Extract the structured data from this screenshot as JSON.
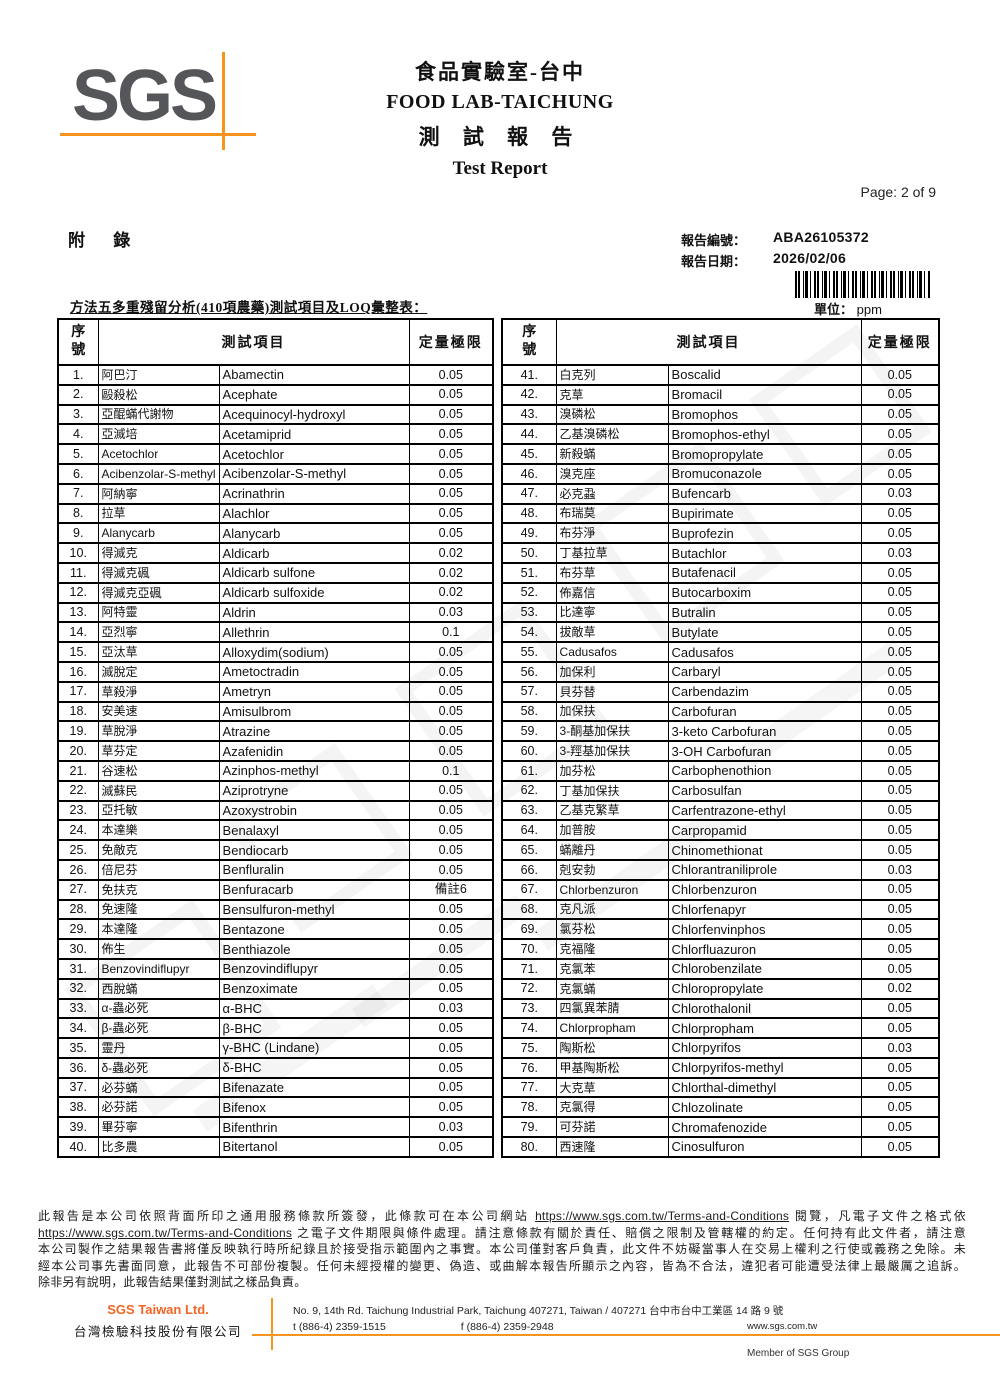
{
  "header": {
    "logo_text": "SGS",
    "lab_title_zh": "食品實驗室-台中",
    "lab_title_en": "FOOD LAB-TAICHUNG",
    "report_title_zh": "測 試 報 告",
    "report_title_en": "Test Report",
    "page_label": "Page: 2 of 9"
  },
  "meta": {
    "appendix_label": "附 錄",
    "report_no_label": "報告編號：",
    "report_no": "ABA26105372",
    "report_date_label": "報告日期：",
    "report_date": "2026/02/06",
    "unit_label": "單位：",
    "unit_value": "ppm"
  },
  "table": {
    "title": "方法五多重殘留分析(410項農藥)測試項目及LOQ彙整表：",
    "headers": {
      "no": "序號",
      "item": "測試項目",
      "loq": "定量極限"
    },
    "rows_left": [
      {
        "no": "1.",
        "zh": "阿巴汀",
        "en": "Abamectin",
        "loq": "0.05"
      },
      {
        "no": "2.",
        "zh": "毆殺松",
        "en": "Acephate",
        "loq": "0.05"
      },
      {
        "no": "3.",
        "zh": "亞醌蟎代謝物",
        "en": "Acequinocyl-hydroxyl",
        "loq": "0.05"
      },
      {
        "no": "4.",
        "zh": "亞滅培",
        "en": "Acetamiprid",
        "loq": "0.05"
      },
      {
        "no": "5.",
        "zh": "Acetochlor",
        "en": "Acetochlor",
        "loq": "0.05"
      },
      {
        "no": "6.",
        "zh": "Acibenzolar-S-methyl",
        "en": "Acibenzolar-S-methyl",
        "loq": "0.05"
      },
      {
        "no": "7.",
        "zh": "阿納寧",
        "en": "Acrinathrin",
        "loq": "0.05"
      },
      {
        "no": "8.",
        "zh": "拉草",
        "en": "Alachlor",
        "loq": "0.05"
      },
      {
        "no": "9.",
        "zh": "Alanycarb",
        "en": "Alanycarb",
        "loq": "0.05"
      },
      {
        "no": "10.",
        "zh": "得滅克",
        "en": "Aldicarb",
        "loq": "0.02"
      },
      {
        "no": "11.",
        "zh": "得滅克碸",
        "en": "Aldicarb sulfone",
        "loq": "0.02"
      },
      {
        "no": "12.",
        "zh": "得滅克亞碸",
        "en": "Aldicarb sulfoxide",
        "loq": "0.02"
      },
      {
        "no": "13.",
        "zh": "阿特靈",
        "en": "Aldrin",
        "loq": "0.03"
      },
      {
        "no": "14.",
        "zh": "亞烈寧",
        "en": "Allethrin",
        "loq": "0.1"
      },
      {
        "no": "15.",
        "zh": "亞汰草",
        "en": "Alloxydim(sodium)",
        "loq": "0.05"
      },
      {
        "no": "16.",
        "zh": "滅脫定",
        "en": "Ametoctradin",
        "loq": "0.05"
      },
      {
        "no": "17.",
        "zh": "草殺淨",
        "en": "Ametryn",
        "loq": "0.05"
      },
      {
        "no": "18.",
        "zh": "安美速",
        "en": "Amisulbrom",
        "loq": "0.05"
      },
      {
        "no": "19.",
        "zh": "草脫淨",
        "en": "Atrazine",
        "loq": "0.05"
      },
      {
        "no": "20.",
        "zh": "草芬定",
        "en": "Azafenidin",
        "loq": "0.05"
      },
      {
        "no": "21.",
        "zh": "谷速松",
        "en": "Azinphos-methyl",
        "loq": "0.1"
      },
      {
        "no": "22.",
        "zh": "滅蘇民",
        "en": "Aziprotryne",
        "loq": "0.05"
      },
      {
        "no": "23.",
        "zh": "亞托敏",
        "en": "Azoxystrobin",
        "loq": "0.05"
      },
      {
        "no": "24.",
        "zh": "本達樂",
        "en": "Benalaxyl",
        "loq": "0.05"
      },
      {
        "no": "25.",
        "zh": "免敵克",
        "en": "Bendiocarb",
        "loq": "0.05"
      },
      {
        "no": "26.",
        "zh": "倍尼芬",
        "en": "Benfluralin",
        "loq": "0.05"
      },
      {
        "no": "27.",
        "zh": "免扶克",
        "en": "Benfuracarb",
        "loq": "備註6"
      },
      {
        "no": "28.",
        "zh": "免速隆",
        "en": "Bensulfuron-methyl",
        "loq": "0.05"
      },
      {
        "no": "29.",
        "zh": "本達隆",
        "en": "Bentazone",
        "loq": "0.05"
      },
      {
        "no": "30.",
        "zh": "佈生",
        "en": "Benthiazole",
        "loq": "0.05"
      },
      {
        "no": "31.",
        "zh": "Benzovindiflupyr",
        "en": "Benzovindiflupyr",
        "loq": "0.05"
      },
      {
        "no": "32.",
        "zh": "西脫蟎",
        "en": "Benzoximate",
        "loq": "0.05"
      },
      {
        "no": "33.",
        "zh": "α-蟲必死",
        "en": "α-BHC",
        "loq": "0.03"
      },
      {
        "no": "34.",
        "zh": "β-蟲必死",
        "en": "β-BHC",
        "loq": "0.05"
      },
      {
        "no": "35.",
        "zh": "靈丹",
        "en": "γ-BHC (Lindane)",
        "loq": "0.05"
      },
      {
        "no": "36.",
        "zh": "δ-蟲必死",
        "en": "δ-BHC",
        "loq": "0.05"
      },
      {
        "no": "37.",
        "zh": "必芬蟎",
        "en": "Bifenazate",
        "loq": "0.05"
      },
      {
        "no": "38.",
        "zh": "必芬諾",
        "en": "Bifenox",
        "loq": "0.05"
      },
      {
        "no": "39.",
        "zh": "畢芬寧",
        "en": "Bifenthrin",
        "loq": "0.03"
      },
      {
        "no": "40.",
        "zh": "比多農",
        "en": "Bitertanol",
        "loq": "0.05"
      }
    ],
    "rows_right": [
      {
        "no": "41.",
        "zh": "白克列",
        "en": "Boscalid",
        "loq": "0.05"
      },
      {
        "no": "42.",
        "zh": "克草",
        "en": "Bromacil",
        "loq": "0.05"
      },
      {
        "no": "43.",
        "zh": "溴磷松",
        "en": "Bromophos",
        "loq": "0.05"
      },
      {
        "no": "44.",
        "zh": "乙基溴磷松",
        "en": "Bromophos-ethyl",
        "loq": "0.05"
      },
      {
        "no": "45.",
        "zh": "新殺蟎",
        "en": "Bromopropylate",
        "loq": "0.05"
      },
      {
        "no": "46.",
        "zh": "溴克座",
        "en": "Bromuconazole",
        "loq": "0.05"
      },
      {
        "no": "47.",
        "zh": "必克蝨",
        "en": "Bufencarb",
        "loq": "0.03"
      },
      {
        "no": "48.",
        "zh": "布瑞莫",
        "en": "Bupirimate",
        "loq": "0.05"
      },
      {
        "no": "49.",
        "zh": "布芬淨",
        "en": "Buprofezin",
        "loq": "0.05"
      },
      {
        "no": "50.",
        "zh": "丁基拉草",
        "en": "Butachlor",
        "loq": "0.03"
      },
      {
        "no": "51.",
        "zh": "布芬草",
        "en": "Butafenacil",
        "loq": "0.05"
      },
      {
        "no": "52.",
        "zh": "佈嘉信",
        "en": "Butocarboxim",
        "loq": "0.05"
      },
      {
        "no": "53.",
        "zh": "比達寧",
        "en": "Butralin",
        "loq": "0.05"
      },
      {
        "no": "54.",
        "zh": "拔敵草",
        "en": "Butylate",
        "loq": "0.05"
      },
      {
        "no": "55.",
        "zh": "Cadusafos",
        "en": "Cadusafos",
        "loq": "0.05"
      },
      {
        "no": "56.",
        "zh": "加保利",
        "en": "Carbaryl",
        "loq": "0.05"
      },
      {
        "no": "57.",
        "zh": "貝芬替",
        "en": "Carbendazim",
        "loq": "0.05"
      },
      {
        "no": "58.",
        "zh": "加保扶",
        "en": "Carbofuran",
        "loq": "0.05"
      },
      {
        "no": "59.",
        "zh": "3-酮基加保扶",
        "en": "3-keto Carbofuran",
        "loq": "0.05"
      },
      {
        "no": "60.",
        "zh": "3-羥基加保扶",
        "en": "3-OH Carbofuran",
        "loq": "0.05"
      },
      {
        "no": "61.",
        "zh": "加芬松",
        "en": "Carbophenothion",
        "loq": "0.05"
      },
      {
        "no": "62.",
        "zh": "丁基加保扶",
        "en": "Carbosulfan",
        "loq": "0.05"
      },
      {
        "no": "63.",
        "zh": "乙基克繁草",
        "en": "Carfentrazone-ethyl",
        "loq": "0.05"
      },
      {
        "no": "64.",
        "zh": "加普胺",
        "en": "Carpropamid",
        "loq": "0.05"
      },
      {
        "no": "65.",
        "zh": "蟎離丹",
        "en": "Chinomethionat",
        "loq": "0.05"
      },
      {
        "no": "66.",
        "zh": "剋安勃",
        "en": "Chlorantraniliprole",
        "loq": "0.03"
      },
      {
        "no": "67.",
        "zh": "Chlorbenzuron",
        "en": "Chlorbenzuron",
        "loq": "0.05"
      },
      {
        "no": "68.",
        "zh": "克凡派",
        "en": "Chlorfenapyr",
        "loq": "0.05"
      },
      {
        "no": "69.",
        "zh": "氯芬松",
        "en": "Chlorfenvinphos",
        "loq": "0.05"
      },
      {
        "no": "70.",
        "zh": "克福隆",
        "en": "Chlorfluazuron",
        "loq": "0.05"
      },
      {
        "no": "71.",
        "zh": "克氯苯",
        "en": "Chlorobenzilate",
        "loq": "0.05"
      },
      {
        "no": "72.",
        "zh": "克氯蟎",
        "en": "Chloropropylate",
        "loq": "0.02"
      },
      {
        "no": "73.",
        "zh": "四氯異苯腈",
        "en": "Chlorothalonil",
        "loq": "0.05"
      },
      {
        "no": "74.",
        "zh": "Chlorpropham",
        "en": "Chlorpropham",
        "loq": "0.05"
      },
      {
        "no": "75.",
        "zh": "陶斯松",
        "en": "Chlorpyrifos",
        "loq": "0.03"
      },
      {
        "no": "76.",
        "zh": "甲基陶斯松",
        "en": "Chlorpyrifos-methyl",
        "loq": "0.05"
      },
      {
        "no": "77.",
        "zh": "大克草",
        "en": "Chlorthal-dimethyl",
        "loq": "0.05"
      },
      {
        "no": "78.",
        "zh": "克氯得",
        "en": "Chlozolinate",
        "loq": "0.05"
      },
      {
        "no": "79.",
        "zh": "可芬諾",
        "en": "Chromafenozide",
        "loq": "0.05"
      },
      {
        "no": "80.",
        "zh": "西速隆",
        "en": "Cinosulfuron",
        "loq": "0.05"
      }
    ]
  },
  "footer": {
    "terms": {
      "l1a": "此報告是本公司依照背面所印之通用服務條款所簽發，此條款可在本公司網站 ",
      "l1_url": "https://www.sgs.com.tw/Terms-and-Conditions",
      "l1b": " 閱覽，凡電子文件之格式依",
      "l2_url": "https://www.sgs.com.tw/Terms-and-Conditions",
      "l2b": " 之電子文件期限與條件處理。請注意條款有關於責任、賠償之限制及管轄權的約定。任何持有此文件者，請注意",
      "l3": "本公司製作之結果報告書將僅反映執行時所紀錄且於接受指示範圍內之事實。本公司僅對客戶負責，此文件不妨礙當事人在交易上權利之行使或義務之免除。未",
      "l4": "經本公司事先書面同意，此報告不可部份複製。任何未經授權的變更、偽造、或曲解本報告所顯示之內容，皆為不合法，違犯者可能遭受法律上最嚴厲之追訴。",
      "l5": "除非另有說明，此報告結果僅對測試之樣品負責。"
    },
    "company_en": "SGS Taiwan Ltd.",
    "company_zh": "台灣檢驗科技股份有限公司",
    "address": "No. 9, 14th Rd. Taichung Industrial Park, Taichung 407271, Taiwan / 407271 台中市台中工業區 14 路 9 號",
    "phone": "t (886-4) 2359-1515",
    "fax": "f (886-4) 2359-2948",
    "website": "www.sgs.com.tw",
    "member": "Member of SGS Group"
  },
  "colors": {
    "accent_orange": "#f7941d",
    "company_orange": "#f26522",
    "logo_gray": "#55565a"
  }
}
